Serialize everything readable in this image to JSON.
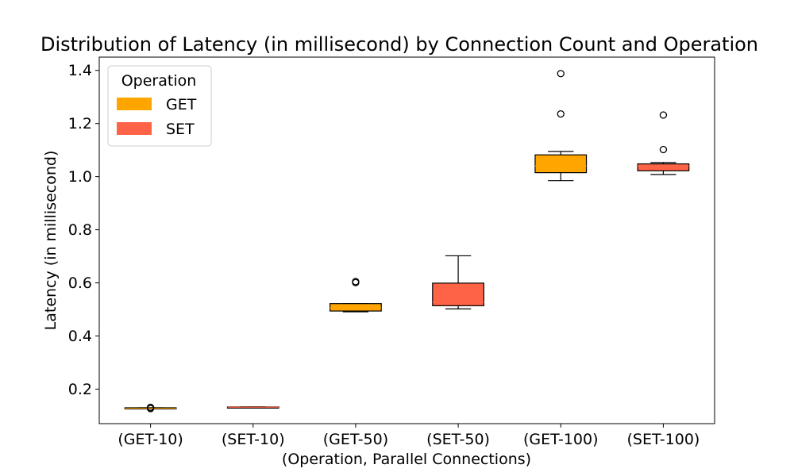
{
  "chart_data": {
    "type": "box",
    "title": "Distribution of Latency (in millisecond) by Connection Count and Operation",
    "xlabel": "(Operation, Parallel Connections)",
    "ylabel": "Latency (in millisecond)",
    "ylim": [
      0.07,
      1.45
    ],
    "yticks": [
      "0.2",
      "0.4",
      "0.6",
      "0.8",
      "1.0",
      "1.2",
      "1.4"
    ],
    "ytick_values": [
      0.2,
      0.4,
      0.6,
      0.8,
      1.0,
      1.2,
      1.4
    ],
    "categories": [
      "(GET-10)",
      "(SET-10)",
      "(GET-50)",
      "(SET-50)",
      "(GET-100)",
      "(SET-100)"
    ],
    "grid": false,
    "legend": {
      "title": "Operation",
      "placement": "top-left",
      "entries": [
        {
          "label": "GET",
          "color": "#FFA500"
        },
        {
          "label": "SET",
          "color": "#FF6347"
        }
      ]
    },
    "boxes": [
      {
        "category": "(GET-10)",
        "operation": "GET",
        "color": "#FFA500",
        "whisker_low": 0.127,
        "q1": 0.127,
        "median": 0.128,
        "q3": 0.13,
        "whisker_high": 0.13,
        "outliers": [
          0.131,
          0.127
        ]
      },
      {
        "category": "(SET-10)",
        "operation": "SET",
        "color": "#FF6347",
        "whisker_low": 0.131,
        "q1": 0.131,
        "median": 0.132,
        "q3": 0.133,
        "whisker_high": 0.133,
        "outliers": []
      },
      {
        "category": "(GET-50)",
        "operation": "GET",
        "color": "#FFA500",
        "whisker_low": 0.491,
        "q1": 0.494,
        "median": 0.506,
        "q3": 0.522,
        "whisker_high": 0.522,
        "outliers": [
          0.601,
          0.605
        ]
      },
      {
        "category": "(SET-50)",
        "operation": "SET",
        "color": "#FF6347",
        "whisker_low": 0.502,
        "q1": 0.514,
        "median": 0.527,
        "q3": 0.599,
        "whisker_high": 0.702,
        "outliers": []
      },
      {
        "category": "(GET-100)",
        "operation": "GET",
        "color": "#FFA500",
        "whisker_low": 0.985,
        "q1": 1.015,
        "median": 1.04,
        "q3": 1.082,
        "whisker_high": 1.095,
        "outliers": [
          1.236,
          1.388
        ]
      },
      {
        "category": "(SET-100)",
        "operation": "SET",
        "color": "#FF6347",
        "whisker_low": 1.008,
        "q1": 1.022,
        "median": 1.04,
        "q3": 1.048,
        "whisker_high": 1.053,
        "outliers": [
          1.102,
          1.232
        ]
      }
    ]
  }
}
